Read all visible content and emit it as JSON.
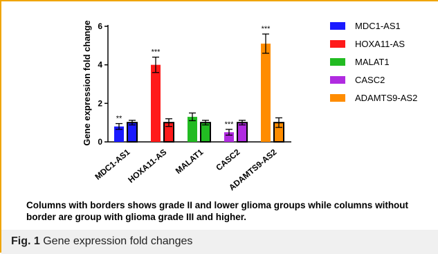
{
  "chart_data": {
    "type": "bar",
    "ylabel": "Gene expression fold change",
    "ylim": [
      0,
      6
    ],
    "yticks": [
      0,
      2,
      4,
      6
    ],
    "categories": [
      "MDC1-AS1",
      "HOXA11-AS",
      "MALAT1",
      "CASC2",
      "ADAMTS9-AS2"
    ],
    "colors": [
      "#1a1aff",
      "#ff1a1a",
      "#22bb22",
      "#b02be0",
      "#ff8c00"
    ],
    "series": [
      {
        "values": [
          0.8,
          4.0,
          1.3,
          0.5,
          5.1
        ],
        "errors": [
          0.15,
          0.4,
          0.2,
          0.15,
          0.5
        ],
        "significance": [
          "**",
          "***",
          "",
          "***",
          "***"
        ],
        "bordered": false
      },
      {
        "values": [
          1.0,
          1.0,
          1.0,
          1.0,
          1.0
        ],
        "errors": [
          0.12,
          0.2,
          0.12,
          0.12,
          0.25
        ],
        "significance": [
          "",
          "",
          "",
          "",
          ""
        ],
        "bordered": true
      }
    ],
    "legend": {
      "position": "right",
      "entries": [
        "MDC1-AS1",
        "HOXA11-AS",
        "MALAT1",
        "CASC2",
        "ADAMTS9-AS2"
      ]
    },
    "grid": false
  },
  "caption": {
    "note": "Columns with borders shows grade II and lower glioma groups while columns without border are group with glioma grade III and higher.",
    "fig_label": "Fig. 1",
    "fig_text": "Gene expression fold changes"
  }
}
